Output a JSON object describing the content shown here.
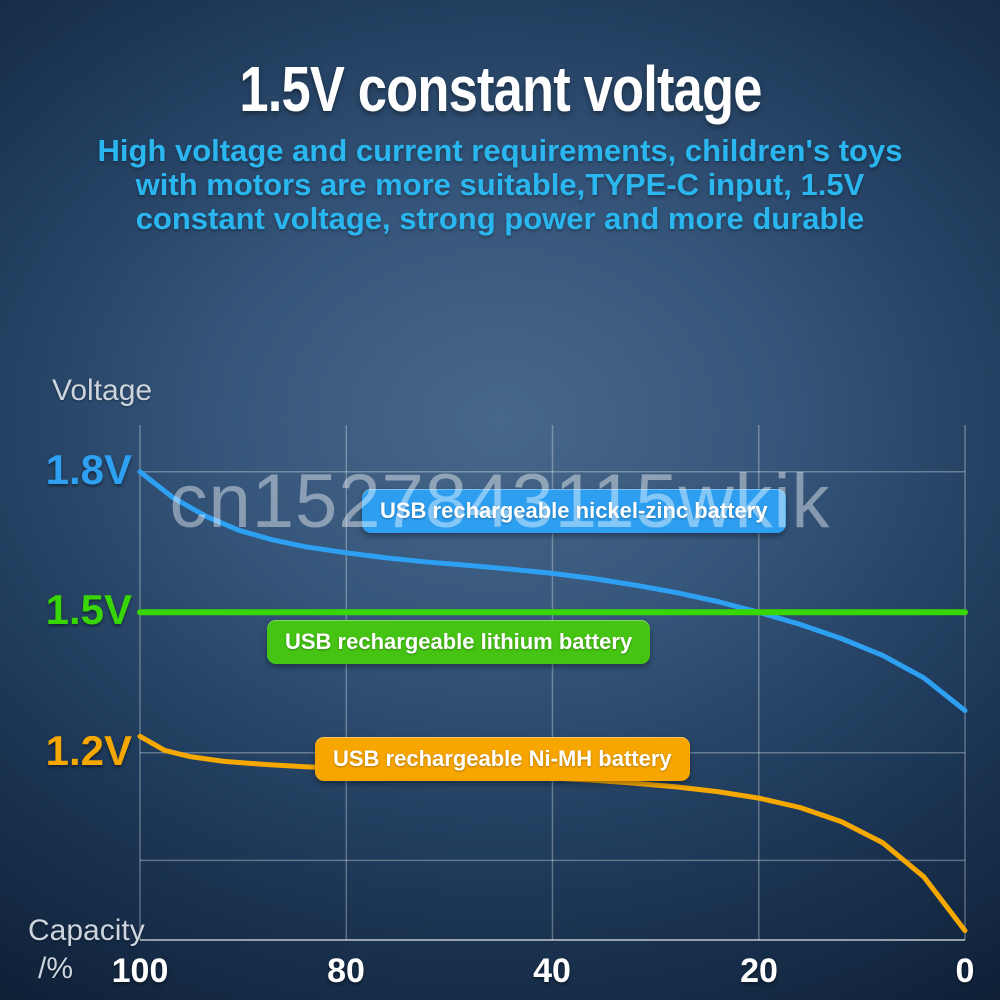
{
  "header": {
    "title": "1.5V constant voltage",
    "subtitle_lines": [
      "High voltage and current requirements, children's toys",
      "with motors are more suitable,TYPE-C input, 1.5V",
      "constant voltage, strong power and more durable"
    ]
  },
  "watermark": "cn1527843115wkik",
  "chart_data": {
    "type": "line",
    "title": "1.5V constant voltage",
    "ylabel": "Voltage",
    "xlabel": "Capacity /%",
    "xlabel_lines": [
      "Capacity",
      "/%"
    ],
    "x_axis": {
      "ticks": [
        "100",
        "80",
        "40",
        "20",
        "0"
      ],
      "direction": "reversed",
      "range": [
        100,
        0
      ]
    },
    "y_axis": {
      "ylim": [
        0.8,
        1.9
      ],
      "tick_labels": [
        {
          "label": "1.8V",
          "value": 1.8,
          "color": "#2da0f2"
        },
        {
          "label": "1.5V",
          "value": 1.5,
          "color": "#39d606"
        },
        {
          "label": "1.2V",
          "value": 1.2,
          "color": "#f5a800"
        }
      ]
    },
    "grid": {
      "on": true,
      "color": "rgba(255,255,255,0.3)",
      "h_values": [
        1.8,
        1.5,
        1.2,
        0.97
      ],
      "v_positions": [
        0,
        0.25,
        0.5,
        0.75,
        1
      ]
    },
    "legend_position": "on-chart-badges",
    "series": [
      {
        "name": "USB rechargeable nickel-zinc battery",
        "color": "#2da0f2",
        "badge_color": "#2e9ff0",
        "line_width": 5,
        "x": [
          100,
          96,
          92,
          88,
          84,
          80,
          75,
          70,
          65,
          60,
          55,
          50,
          45,
          40,
          35,
          30,
          25,
          20,
          15,
          10,
          5,
          0
        ],
        "y": [
          1.8,
          1.745,
          1.705,
          1.675,
          1.655,
          1.64,
          1.627,
          1.616,
          1.607,
          1.6,
          1.592,
          1.583,
          1.572,
          1.558,
          1.542,
          1.523,
          1.5,
          1.474,
          1.444,
          1.408,
          1.36,
          1.29
        ]
      },
      {
        "name": "USB rechargeable lithium battery",
        "color": "#39d606",
        "badge_color": "#46c414",
        "line_width": 6,
        "x": [
          100,
          0
        ],
        "y": [
          1.5,
          1.5
        ]
      },
      {
        "name": "USB rechargeable Ni-MH battery",
        "color": "#f5a800",
        "badge_color": "#f7a600",
        "line_width": 5,
        "x": [
          100,
          97,
          94,
          90,
          85,
          80,
          75,
          70,
          65,
          60,
          55,
          50,
          45,
          40,
          35,
          30,
          25,
          20,
          15,
          10,
          5,
          0
        ],
        "y": [
          1.235,
          1.205,
          1.192,
          1.182,
          1.175,
          1.17,
          1.166,
          1.162,
          1.158,
          1.154,
          1.15,
          1.146,
          1.141,
          1.135,
          1.127,
          1.117,
          1.103,
          1.083,
          1.053,
          1.008,
          0.935,
          0.82
        ]
      }
    ]
  }
}
